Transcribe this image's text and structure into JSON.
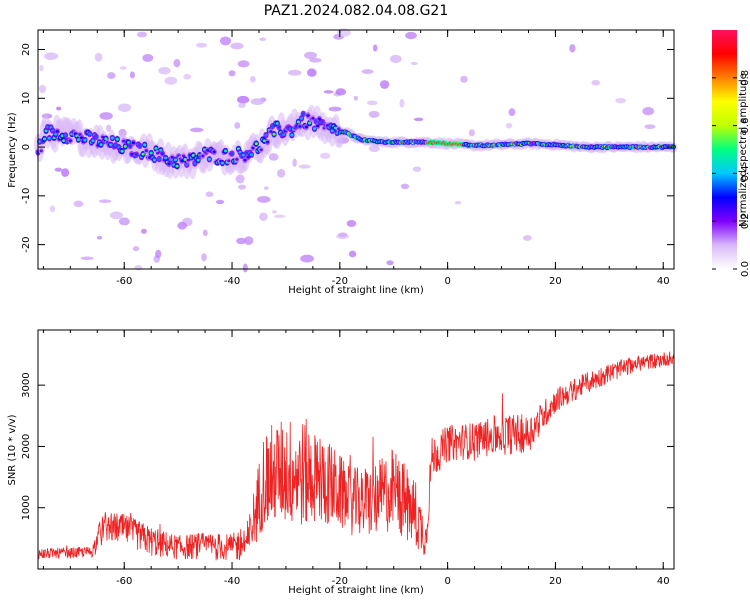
{
  "title": "PAZ1.2024.082.04.08.G21",
  "chart_data": [
    {
      "type": "heatmap",
      "xlabel": "Height of straight line (km)",
      "ylabel": "Frequency (Hz)",
      "xlim": [
        -76,
        42
      ],
      "ylim": [
        -25,
        24
      ],
      "xticks": [
        -60,
        -40,
        -20,
        0,
        20,
        40
      ],
      "yticks": [
        -20,
        -10,
        0,
        10,
        20
      ],
      "colorbar": {
        "label": "Normalized spectral amplitude",
        "range": [
          0.0,
          1.0
        ],
        "ticks": [
          0.0,
          0.2,
          0.4,
          0.6,
          0.8
        ],
        "colors": [
          "#ffffff",
          "#d8b8f8",
          "#8000ff",
          "#0000ff",
          "#00c8ff",
          "#00ff80",
          "#c0ff00",
          "#ffff00",
          "#ff8000",
          "#ff0000",
          "#ff1060"
        ]
      },
      "ridge": {
        "description_points": [
          [
            -75,
            3.0
          ],
          [
            -70,
            2.5
          ],
          [
            -66,
            1.5
          ],
          [
            -62,
            0.5
          ],
          [
            -58,
            -0.5
          ],
          [
            -55,
            -1.0
          ],
          [
            -52,
            -2.5
          ],
          [
            -48,
            -3.0
          ],
          [
            -45,
            -1.5
          ],
          [
            -42,
            -2.0
          ],
          [
            -38,
            -1.5
          ],
          [
            -35,
            0.0
          ],
          [
            -32,
            3.5
          ],
          [
            -29,
            3.5
          ],
          [
            -27,
            5.5
          ],
          [
            -25,
            5.0
          ],
          [
            -22,
            3.5
          ],
          [
            -19,
            3.0
          ],
          [
            -16,
            1.5
          ],
          [
            -12,
            1.0
          ],
          [
            -8,
            1.0
          ],
          [
            -4,
            1.0
          ],
          [
            0,
            0.7
          ],
          [
            5,
            0.3
          ],
          [
            10,
            0.5
          ],
          [
            15,
            0.7
          ],
          [
            20,
            0.5
          ],
          [
            25,
            0.0
          ],
          [
            30,
            0.0
          ],
          [
            35,
            0.0
          ],
          [
            42,
            0.0
          ]
        ],
        "peak_amplitude_x": [
          -4,
          3
        ]
      },
      "grid": false
    },
    {
      "type": "line",
      "xlabel": "Height of straight line (km)",
      "ylabel": "SNR (10 * v/v)",
      "xlim": [
        -76,
        42
      ],
      "ylim": [
        0,
        3900
      ],
      "xticks": [
        -60,
        -40,
        -20,
        0,
        20,
        40
      ],
      "yticks": [
        1000,
        2000,
        3000
      ],
      "color": "#ee2222",
      "envelope": {
        "x": [
          -76,
          -70,
          -66,
          -64,
          -60,
          -55,
          -50,
          -45,
          -40,
          -37,
          -34,
          -30,
          -26,
          -22,
          -18,
          -14,
          -10,
          -6,
          -4,
          -3,
          0,
          5,
          10,
          15,
          20,
          25,
          30,
          35,
          42
        ],
        "mean": [
          250,
          260,
          280,
          700,
          650,
          450,
          350,
          380,
          350,
          450,
          1500,
          1600,
          1550,
          1400,
          1100,
          1100,
          1300,
          900,
          500,
          1800,
          2050,
          2100,
          2200,
          2200,
          2750,
          3000,
          3200,
          3350,
          3450
        ],
        "noise": [
          90,
          90,
          90,
          250,
          250,
          250,
          200,
          220,
          220,
          350,
          800,
          900,
          900,
          700,
          550,
          600,
          700,
          600,
          300,
          350,
          300,
          300,
          350,
          300,
          200,
          180,
          160,
          130,
          120
        ]
      },
      "grid": false
    }
  ]
}
